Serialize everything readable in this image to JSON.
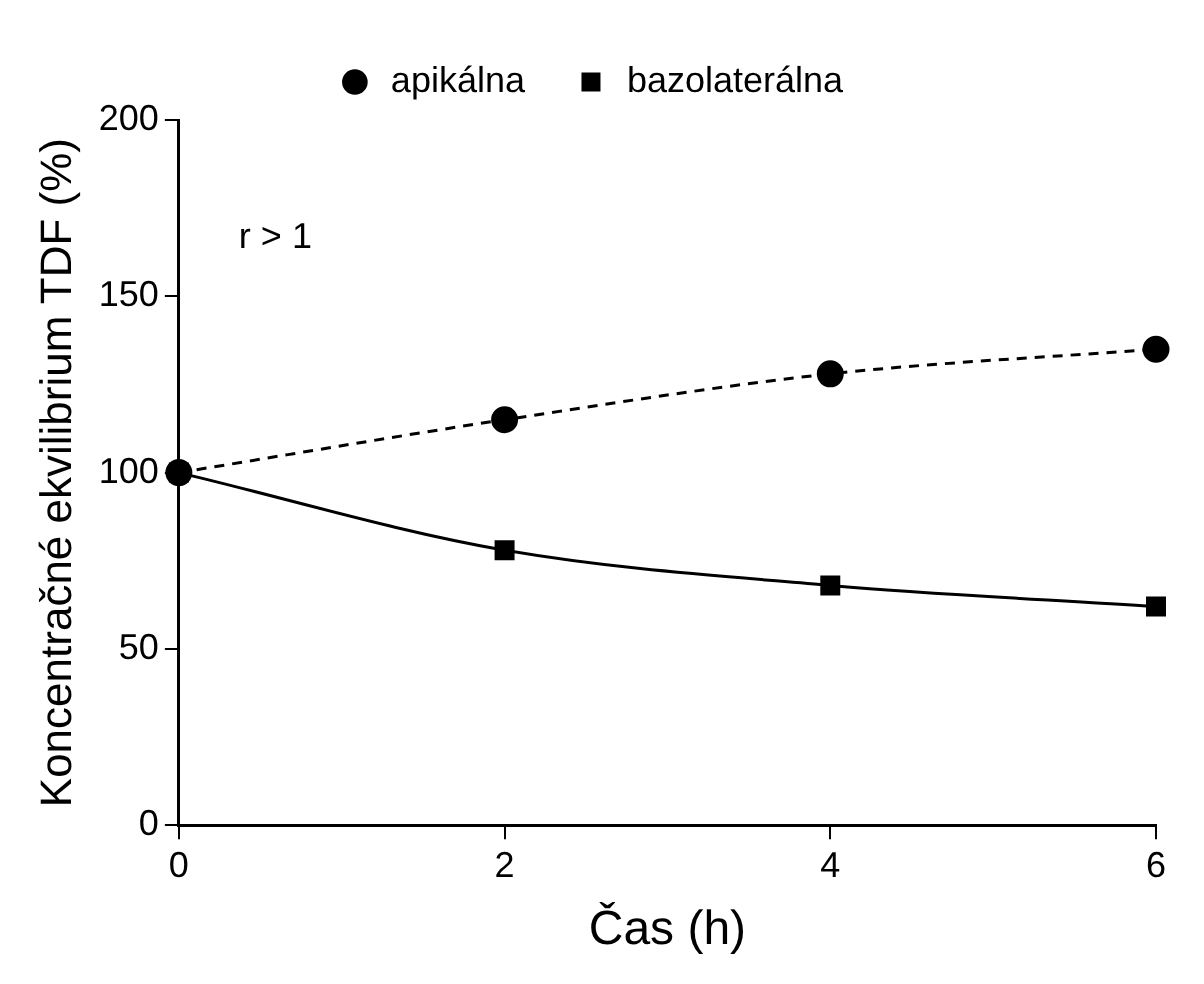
{
  "chart_data": {
    "type": "line",
    "xlabel": "Čas (h)",
    "ylabel": "Koncentračné ekvilibrium TDF (%)",
    "x": [
      0,
      2,
      4,
      6
    ],
    "series": [
      {
        "name": "apikálna",
        "color": "#000000",
        "values": [
          100,
          115,
          128,
          135
        ],
        "marker": "circle",
        "line_style": "dashed"
      },
      {
        "name": "bazolaterálna",
        "color": "#000000",
        "values": [
          100,
          78,
          68,
          62
        ],
        "marker": "square",
        "line_style": "solid"
      }
    ],
    "xlim": [
      0,
      6
    ],
    "xticks": [
      0,
      2,
      4,
      6
    ],
    "ylim": [
      0,
      200
    ],
    "yticks": [
      0,
      50,
      100,
      150,
      200
    ],
    "grid": false,
    "legend": "top",
    "annotations": [
      "r > 1"
    ]
  }
}
